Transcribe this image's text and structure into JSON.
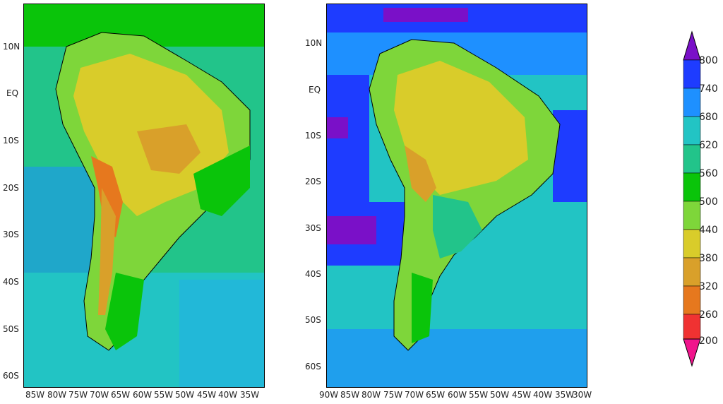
{
  "maps": [
    {
      "name": "left-map",
      "lat_labels": [
        "10N",
        "EQ",
        "10S",
        "20S",
        "30S",
        "40S",
        "50S",
        "60S"
      ],
      "lon_labels": [
        "85W",
        "80W",
        "75W",
        "70W",
        "65W",
        "60W",
        "55W",
        "50W",
        "45W",
        "40W",
        "35W"
      ],
      "ocean_color": "#22c4c4",
      "land_color": "#d9cc2a"
    },
    {
      "name": "right-map",
      "lat_labels": [
        "10N",
        "EQ",
        "10S",
        "20S",
        "30S",
        "40S",
        "50S",
        "60S"
      ],
      "lon_labels": [
        "90W",
        "85W",
        "80W",
        "75W",
        "70W",
        "65W",
        "60W",
        "55W",
        "50W",
        "45W",
        "40W",
        "35W",
        "30W"
      ],
      "ocean_color": "#22b8d8",
      "land_color": "#d9cc2a"
    }
  ],
  "colorbar": {
    "labels": [
      "800",
      "740",
      "680",
      "620",
      "560",
      "500",
      "440",
      "380",
      "320",
      "260",
      "200"
    ],
    "colors": [
      "#1e3cff",
      "#1e90ff",
      "#22c4c4",
      "#22c48a",
      "#0ac40a",
      "#7ed63a",
      "#d9cc2a",
      "#d9a02a",
      "#e6781e",
      "#f03232"
    ],
    "top_arrow_color": "#7a10c8",
    "bottom_arrow_color": "#f0148c"
  }
}
